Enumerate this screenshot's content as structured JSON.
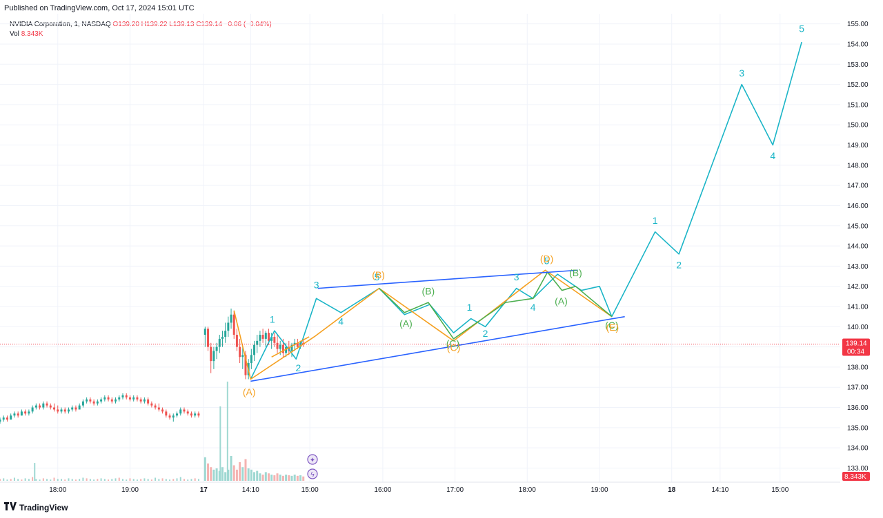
{
  "header": {
    "published": "Published on TradingView.com, Oct 17, 2024 15:01 UTC"
  },
  "legend": {
    "symbol": "NVIDIA Corporation, 1, NASDAQ",
    "open": "O139.20",
    "high": "H139.22",
    "low": "L139.13",
    "close": "C139.14",
    "change": "−0.06 (−0.04%)",
    "vol_label": "Vol",
    "vol_value": "8.343K"
  },
  "footer": {
    "brand": "TradingView"
  },
  "colors": {
    "cyan": "#1bb5c7",
    "orange": "#f5a020",
    "green": "#4caf50",
    "blue": "#2962ff",
    "up": "#26a69a",
    "down": "#ef5350",
    "price_line": "#f23645"
  },
  "chart_data": {
    "type": "line",
    "y_axis": {
      "min": 132.3,
      "max": 155.5,
      "ticks": [
        133,
        134,
        135,
        136,
        137,
        138,
        139,
        140,
        141,
        142,
        143,
        144,
        145,
        146,
        147,
        148,
        149,
        150,
        151,
        152,
        153,
        154,
        155
      ]
    },
    "x_ticks": [
      {
        "label": "18:00",
        "x": 0.8
      },
      {
        "label": "19:00",
        "x": 1.8
      },
      {
        "label": "17",
        "x": 2.82
      },
      {
        "label": "14:10",
        "x": 3.47
      },
      {
        "label": "15:00",
        "x": 4.29
      },
      {
        "label": "16:00",
        "x": 5.3
      },
      {
        "label": "17:00",
        "x": 6.3
      },
      {
        "label": "18:00",
        "x": 7.3
      },
      {
        "label": "19:00",
        "x": 8.3
      },
      {
        "label": "18",
        "x": 9.3
      },
      {
        "label": "14:10",
        "x": 9.97
      },
      {
        "label": "15:00",
        "x": 10.8
      }
    ],
    "last_price": {
      "value": 139.14,
      "label": "139.14",
      "timer": "00:34"
    },
    "last_volume": {
      "label": "8.343K"
    },
    "candles_prev_day": [
      [
        0,
        135.3,
        135.5,
        135.2,
        135.4
      ],
      [
        0.05,
        135.4,
        135.6,
        135.3,
        135.5
      ],
      [
        0.1,
        135.5,
        135.6,
        135.3,
        135.4
      ],
      [
        0.15,
        135.4,
        135.7,
        135.4,
        135.6
      ],
      [
        0.2,
        135.6,
        135.8,
        135.5,
        135.7
      ],
      [
        0.25,
        135.7,
        135.8,
        135.5,
        135.6
      ],
      [
        0.3,
        135.6,
        135.9,
        135.6,
        135.8
      ],
      [
        0.35,
        135.8,
        135.9,
        135.6,
        135.7
      ],
      [
        0.4,
        135.7,
        135.9,
        135.6,
        135.8
      ],
      [
        0.45,
        135.8,
        136.1,
        135.7,
        136.0
      ],
      [
        0.5,
        136.0,
        136.2,
        135.9,
        136.1
      ],
      [
        0.55,
        136.1,
        136.2,
        135.9,
        136.0
      ],
      [
        0.6,
        136.0,
        136.3,
        135.9,
        136.2
      ],
      [
        0.65,
        136.2,
        136.3,
        136.0,
        136.1
      ],
      [
        0.7,
        136.1,
        136.2,
        135.9,
        136.0
      ],
      [
        0.75,
        136.0,
        136.2,
        135.8,
        135.9
      ],
      [
        0.8,
        135.9,
        136.1,
        135.7,
        135.8
      ],
      [
        0.85,
        135.8,
        136.0,
        135.7,
        135.9
      ],
      [
        0.9,
        135.9,
        136.0,
        135.7,
        135.8
      ],
      [
        0.95,
        135.8,
        136.0,
        135.7,
        135.9
      ],
      [
        1.0,
        135.9,
        136.1,
        135.8,
        136.0
      ],
      [
        1.05,
        136.0,
        136.1,
        135.8,
        135.9
      ],
      [
        1.1,
        135.9,
        136.2,
        135.9,
        136.1
      ],
      [
        1.15,
        136.1,
        136.4,
        136.0,
        136.3
      ],
      [
        1.2,
        136.3,
        136.5,
        136.2,
        136.4
      ],
      [
        1.25,
        136.4,
        136.5,
        136.2,
        136.3
      ],
      [
        1.3,
        136.3,
        136.4,
        136.1,
        136.2
      ],
      [
        1.35,
        136.2,
        136.4,
        136.1,
        136.3
      ],
      [
        1.4,
        136.3,
        136.5,
        136.2,
        136.4
      ],
      [
        1.45,
        136.4,
        136.6,
        136.3,
        136.5
      ],
      [
        1.5,
        136.5,
        136.6,
        136.3,
        136.4
      ],
      [
        1.55,
        136.4,
        136.5,
        136.2,
        136.3
      ],
      [
        1.6,
        136.3,
        136.5,
        136.2,
        136.4
      ],
      [
        1.65,
        136.4,
        136.6,
        136.3,
        136.5
      ],
      [
        1.7,
        136.5,
        136.7,
        136.4,
        136.6
      ],
      [
        1.75,
        136.6,
        136.7,
        136.4,
        136.5
      ],
      [
        1.8,
        136.5,
        136.6,
        136.3,
        136.4
      ],
      [
        1.85,
        136.4,
        136.6,
        136.3,
        136.5
      ],
      [
        1.9,
        136.5,
        136.6,
        136.3,
        136.4
      ],
      [
        1.95,
        136.4,
        136.5,
        136.2,
        136.3
      ],
      [
        2.0,
        136.3,
        136.5,
        136.2,
        136.4
      ],
      [
        2.05,
        136.4,
        136.5,
        136.1,
        136.2
      ],
      [
        2.1,
        136.2,
        136.3,
        136.0,
        136.1
      ],
      [
        2.15,
        136.1,
        136.2,
        135.9,
        136.0
      ],
      [
        2.2,
        136.0,
        136.2,
        135.8,
        135.9
      ],
      [
        2.25,
        135.9,
        136.0,
        135.7,
        135.8
      ],
      [
        2.3,
        135.8,
        135.9,
        135.5,
        135.6
      ],
      [
        2.35,
        135.6,
        135.7,
        135.4,
        135.5
      ],
      [
        2.4,
        135.5,
        135.7,
        135.3,
        135.6
      ],
      [
        2.45,
        135.6,
        135.8,
        135.5,
        135.7
      ],
      [
        2.5,
        135.7,
        136.0,
        135.6,
        135.9
      ],
      [
        2.55,
        135.9,
        136.0,
        135.7,
        135.8
      ],
      [
        2.6,
        135.8,
        135.9,
        135.6,
        135.7
      ],
      [
        2.65,
        135.7,
        135.8,
        135.5,
        135.6
      ],
      [
        2.7,
        135.6,
        135.8,
        135.5,
        135.7
      ],
      [
        2.75,
        135.7,
        135.8,
        135.5,
        135.6
      ]
    ],
    "candles_today": [
      [
        2.84,
        139.6,
        140.0,
        139.0,
        139.9
      ],
      [
        2.88,
        139.9,
        140.0,
        138.8,
        139.0
      ],
      [
        2.92,
        139.0,
        139.2,
        137.7,
        138.3
      ],
      [
        2.96,
        138.3,
        139.0,
        137.9,
        138.8
      ],
      [
        3.0,
        138.8,
        139.2,
        138.4,
        139.0
      ],
      [
        3.04,
        139.0,
        139.6,
        138.7,
        139.4
      ],
      [
        3.08,
        139.4,
        139.8,
        139.0,
        139.5
      ],
      [
        3.12,
        139.5,
        140.2,
        139.2,
        139.8
      ],
      [
        3.16,
        139.8,
        140.5,
        139.5,
        140.2
      ],
      [
        3.2,
        140.2,
        140.9,
        139.9,
        140.6
      ],
      [
        3.24,
        140.6,
        140.8,
        139.4,
        139.6
      ],
      [
        3.28,
        139.6,
        139.9,
        138.8,
        139.0
      ],
      [
        3.32,
        139.0,
        139.4,
        138.2,
        138.5
      ],
      [
        3.36,
        138.5,
        139.0,
        137.9,
        138.6
      ],
      [
        3.4,
        138.6,
        138.8,
        137.4,
        137.6
      ],
      [
        3.44,
        137.6,
        138.4,
        137.4,
        138.2
      ],
      [
        3.48,
        138.2,
        138.9,
        137.9,
        138.6
      ],
      [
        3.52,
        138.6,
        139.3,
        138.3,
        139.1
      ],
      [
        3.56,
        139.1,
        139.6,
        138.7,
        139.3
      ],
      [
        3.6,
        139.3,
        139.8,
        139.0,
        139.6
      ],
      [
        3.64,
        139.6,
        139.9,
        139.2,
        139.4
      ],
      [
        3.68,
        139.4,
        139.8,
        139.0,
        139.7
      ],
      [
        3.72,
        139.7,
        139.9,
        139.1,
        139.3
      ],
      [
        3.76,
        139.3,
        139.7,
        138.9,
        139.5
      ],
      [
        3.8,
        139.5,
        139.7,
        139.0,
        139.2
      ],
      [
        3.84,
        139.2,
        139.6,
        138.7,
        138.9
      ],
      [
        3.88,
        138.9,
        139.3,
        138.6,
        139.1
      ],
      [
        3.92,
        139.1,
        139.4,
        138.5,
        138.7
      ],
      [
        3.96,
        138.7,
        139.2,
        138.5,
        139.0
      ],
      [
        4.0,
        139.0,
        139.3,
        138.6,
        138.8
      ],
      [
        4.04,
        138.8,
        139.2,
        138.5,
        139.1
      ],
      [
        4.08,
        139.1,
        139.4,
        138.8,
        139.2
      ],
      [
        4.12,
        139.2,
        139.4,
        138.9,
        139.0
      ],
      [
        4.16,
        139.0,
        139.3,
        138.9,
        139.2
      ],
      [
        4.2,
        139.2,
        139.4,
        139.0,
        139.14
      ]
    ],
    "volumes_prev_day": [
      3,
      4,
      2,
      3,
      5,
      3,
      2,
      4,
      3,
      6,
      3,
      2,
      4,
      3,
      2,
      5,
      3,
      3,
      2,
      4,
      3,
      2,
      3,
      5,
      4,
      3,
      2,
      3,
      4,
      3,
      2,
      3,
      4,
      5,
      3,
      2,
      4,
      3,
      2,
      3,
      4,
      3,
      2,
      5,
      3,
      4,
      3,
      2,
      3,
      4,
      6,
      3,
      2,
      3,
      4,
      3
    ],
    "volumes_today": [
      38,
      28,
      22,
      18,
      20,
      16,
      22,
      14,
      18,
      40,
      25,
      18,
      30,
      22,
      35,
      20,
      18,
      14,
      16,
      12,
      10,
      14,
      12,
      10,
      9,
      12,
      10,
      8,
      10,
      9,
      8,
      10,
      8,
      9,
      7
    ],
    "volume_spikes": [
      {
        "x": 0.48,
        "v": 18
      },
      {
        "x": 3.05,
        "v": 75
      },
      {
        "x": 3.15,
        "v": 100
      }
    ],
    "series": [
      {
        "name": "cyan-wave",
        "color": "#1bb5c7",
        "points": [
          [
            3.47,
            137.4
          ],
          [
            3.8,
            139.8
          ],
          [
            4.1,
            138.4
          ],
          [
            4.38,
            141.4
          ],
          [
            4.72,
            140.7
          ],
          [
            5.25,
            141.9
          ],
          [
            5.6,
            140.6
          ],
          [
            5.95,
            141.1
          ],
          [
            6.28,
            139.7
          ],
          [
            6.52,
            140.4
          ],
          [
            6.72,
            140.0
          ],
          [
            7.15,
            141.9
          ],
          [
            7.38,
            141.4
          ],
          [
            7.72,
            142.6
          ],
          [
            8.05,
            141.8
          ],
          [
            8.3,
            142.0
          ],
          [
            8.47,
            140.5
          ],
          [
            9.07,
            144.7
          ],
          [
            9.4,
            143.6
          ],
          [
            10.27,
            152.0
          ],
          [
            10.7,
            149.0
          ],
          [
            11.1,
            154.1
          ]
        ]
      },
      {
        "name": "orange-wave",
        "color": "#f5a020",
        "points": [
          [
            3.24,
            140.8
          ],
          [
            3.47,
            137.4
          ],
          [
            4.35,
            139.5
          ],
          [
            5.25,
            141.9
          ],
          [
            6.28,
            139.3
          ],
          [
            7.55,
            142.8
          ],
          [
            8.47,
            140.5
          ]
        ]
      },
      {
        "name": "orange-sub",
        "color": "#f5a020",
        "points": [
          [
            3.76,
            138.5
          ],
          [
            4.28,
            139.5
          ]
        ]
      },
      {
        "name": "green-wave",
        "color": "#4caf50",
        "points": [
          [
            5.25,
            141.9
          ],
          [
            5.6,
            140.7
          ],
          [
            5.93,
            141.2
          ],
          [
            6.28,
            139.4
          ],
          [
            7.0,
            141.2
          ],
          [
            7.38,
            141.4
          ],
          [
            7.58,
            142.7
          ],
          [
            7.78,
            141.8
          ],
          [
            7.97,
            142.0
          ],
          [
            8.47,
            140.5
          ]
        ]
      },
      {
        "name": "upper-trendline",
        "color": "#2962ff",
        "points": [
          [
            4.4,
            141.9
          ],
          [
            8.0,
            142.8
          ]
        ]
      },
      {
        "name": "lower-trendline",
        "color": "#2962ff",
        "points": [
          [
            3.47,
            137.3
          ],
          [
            8.65,
            140.5
          ]
        ]
      }
    ],
    "labels": [
      {
        "text": "1",
        "color": "#1bb5c7",
        "x": 3.77,
        "y": 140.2
      },
      {
        "text": "2",
        "color": "#1bb5c7",
        "x": 4.13,
        "y": 137.8
      },
      {
        "text": "3",
        "color": "#1bb5c7",
        "x": 4.38,
        "y": 141.9
      },
      {
        "text": "4",
        "color": "#1bb5c7",
        "x": 4.72,
        "y": 140.1
      },
      {
        "text": "5",
        "color": "#1bb5c7",
        "x": 5.22,
        "y": 142.3
      },
      {
        "text": "(B)",
        "color": "#f5a020",
        "x": 5.24,
        "y": 142.4
      },
      {
        "text": "(A)",
        "color": "#f5a020",
        "x": 3.45,
        "y": 136.6
      },
      {
        "text": "(B)",
        "color": "#4caf50",
        "x": 5.93,
        "y": 141.6
      },
      {
        "text": "(A)",
        "color": "#4caf50",
        "x": 5.62,
        "y": 140.0
      },
      {
        "text": "(C)",
        "color": "#4caf50",
        "x": 6.27,
        "y": 139.0
      },
      {
        "text": "(C)",
        "color": "#f5a020",
        "x": 6.28,
        "y": 138.8
      },
      {
        "text": "1",
        "color": "#1bb5c7",
        "x": 6.5,
        "y": 140.8
      },
      {
        "text": "2",
        "color": "#1bb5c7",
        "x": 6.72,
        "y": 139.5
      },
      {
        "text": "3",
        "color": "#1bb5c7",
        "x": 7.15,
        "y": 142.3
      },
      {
        "text": "4",
        "color": "#1bb5c7",
        "x": 7.38,
        "y": 140.8
      },
      {
        "text": "5",
        "color": "#1bb5c7",
        "x": 7.57,
        "y": 143.1
      },
      {
        "text": "(D)",
        "color": "#f5a020",
        "x": 7.57,
        "y": 143.2
      },
      {
        "text": "(B)",
        "color": "#4caf50",
        "x": 7.97,
        "y": 142.5
      },
      {
        "text": "(A)",
        "color": "#4caf50",
        "x": 7.77,
        "y": 141.1
      },
      {
        "text": "(C)",
        "color": "#4caf50",
        "x": 8.47,
        "y": 139.9
      },
      {
        "text": "(E)",
        "color": "#f5a020",
        "x": 8.48,
        "y": 139.8
      },
      {
        "text": "1",
        "color": "#1bb5c7",
        "x": 9.07,
        "y": 145.1
      },
      {
        "text": "2",
        "color": "#1bb5c7",
        "x": 9.4,
        "y": 142.9
      },
      {
        "text": "3",
        "color": "#1bb5c7",
        "x": 10.27,
        "y": 152.4
      },
      {
        "text": "4",
        "color": "#1bb5c7",
        "x": 10.7,
        "y": 148.3
      },
      {
        "text": "5",
        "color": "#1bb5c7",
        "x": 11.1,
        "y": 154.6
      }
    ],
    "grid": true
  }
}
